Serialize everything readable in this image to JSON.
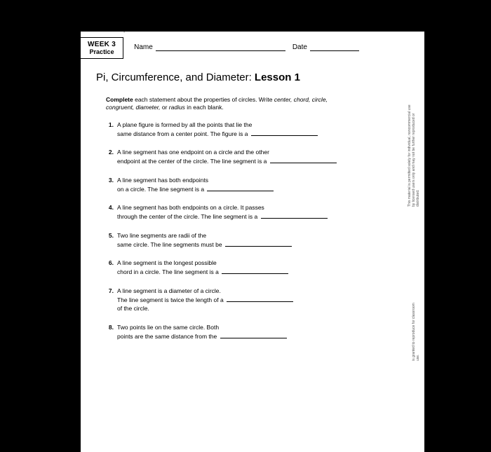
{
  "header": {
    "week_line1": "WEEK 3",
    "week_line2": "Practice",
    "name_label": "Name",
    "date_label": "Date"
  },
  "title": {
    "prefix": "Pi, Circumference, and Diameter: ",
    "bold": "Lesson 1"
  },
  "instructions": {
    "bold": "Complete",
    "text1": " each statement about the properties of circles. Write ",
    "italics": "center, chord, circle, congruent, diameter,",
    "text2": " or ",
    "italics2": "radius",
    "text3": " in each blank."
  },
  "questions": [
    {
      "num": "1.",
      "line1": "A plane figure is formed by all the points that lie the",
      "line2": "same distance from a center point. The figure is a ",
      "blank_w": 95
    },
    {
      "num": "2.",
      "line1": "A line segment has one endpoint on a circle and the other",
      "line2": "endpoint at the center of the circle. The line segment is a ",
      "blank_w": 95
    },
    {
      "num": "3.",
      "line1": "A line segment has both endpoints",
      "line2": "on a circle. The line segment is a ",
      "blank_w": 95
    },
    {
      "num": "4.",
      "line1": "A line segment has both endpoints on a circle. It passes",
      "line2": "through the center of the circle. The line segment is a ",
      "blank_w": 95
    },
    {
      "num": "5.",
      "line1": "Two line segments are radii of the",
      "line2": "same circle. The line segments must be ",
      "blank_w": 95
    },
    {
      "num": "6.",
      "line1": "A line segment is the longest possible",
      "line2": "chord in a circle. The line segment is a ",
      "blank_w": 95
    },
    {
      "num": "7.",
      "line1": "A line segment is a diameter of a circle.",
      "line2": "The line segment is twice the length of a ",
      "line3": "of the circle.",
      "blank_w": 95
    },
    {
      "num": "8.",
      "line1": "Two points lie on the same circle. Both",
      "line2": "points are the same distance from the ",
      "blank_w": 95
    }
  ],
  "side1": "This material is permitted solely for individual, noncommercial use by licensed users only and may not be further reproduced or distributed.",
  "side2": "is granted to reproduce for classroom use."
}
